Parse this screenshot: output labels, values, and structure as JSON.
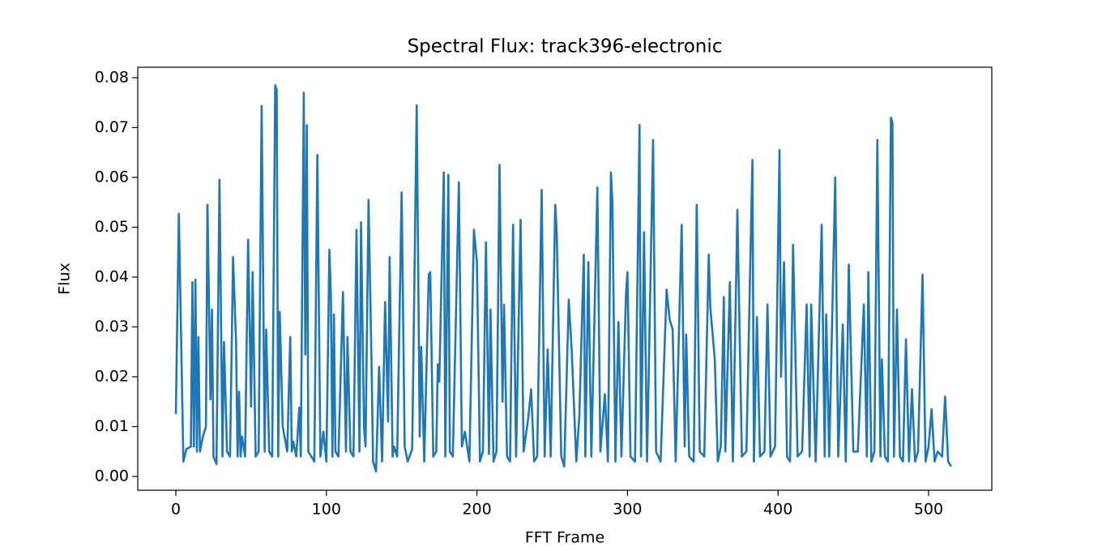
{
  "chart_data": {
    "type": "line",
    "title": "Spectral Flux: track396-electronic",
    "xlabel": "FFT Frame",
    "ylabel": "Flux",
    "color": "#1f77b4",
    "x": [
      0,
      2,
      5,
      7,
      10,
      11,
      12,
      13,
      14,
      15,
      16,
      18,
      20,
      21,
      23,
      24,
      25,
      27,
      29,
      31,
      32,
      34,
      36,
      38,
      40,
      41,
      42,
      43,
      44,
      46,
      48,
      50,
      51,
      53,
      55,
      57,
      59,
      60,
      62,
      64,
      66,
      67,
      68,
      69,
      71,
      74,
      76,
      77,
      78,
      80,
      82,
      83,
      85,
      86,
      87,
      88,
      90,
      92,
      94,
      96,
      98,
      100,
      102,
      103,
      104,
      105,
      106,
      108,
      111,
      113,
      114,
      116,
      118,
      120,
      122,
      123,
      125,
      126,
      128,
      130,
      131,
      133,
      135,
      137,
      139,
      141,
      142,
      144,
      145,
      147,
      150,
      152,
      154,
      157,
      160,
      162,
      163,
      165,
      168,
      169,
      171,
      173,
      174,
      175,
      178,
      179,
      181,
      182,
      184,
      188,
      190,
      192,
      195,
      198,
      200,
      202,
      204,
      206,
      208,
      209,
      211,
      213,
      215,
      217,
      218,
      220,
      222,
      224,
      226,
      229,
      231,
      234,
      236,
      238,
      240,
      243,
      245,
      247,
      249,
      252,
      253,
      256,
      258,
      261,
      263,
      266,
      268,
      271,
      272,
      274,
      276,
      280,
      282,
      285,
      287,
      289,
      290,
      292,
      294,
      296,
      299,
      300,
      302,
      305,
      308,
      309,
      311,
      313,
      317,
      319,
      322,
      326,
      328,
      330,
      332,
      336,
      338,
      339,
      341,
      344,
      346,
      348,
      351,
      354,
      355,
      358,
      360,
      362,
      364,
      365,
      368,
      370,
      373,
      376,
      379,
      383,
      384,
      386,
      388,
      391,
      393,
      395,
      398,
      401,
      402,
      404,
      406,
      408,
      410,
      413,
      416,
      419,
      421,
      422,
      425,
      429,
      431,
      432,
      434,
      438,
      440,
      443,
      445,
      447,
      450,
      453,
      457,
      459,
      460,
      462,
      464,
      466,
      468,
      469,
      471,
      473,
      475,
      476,
      477,
      479,
      481,
      483,
      485,
      487,
      489,
      491,
      493,
      496,
      498,
      500,
      502,
      504,
      506,
      509,
      511,
      513,
      515
    ],
    "values": [
      0.0125,
      0.0527,
      0.003,
      0.0055,
      0.006,
      0.039,
      0.006,
      0.0395,
      0.005,
      0.028,
      0.005,
      0.008,
      0.01,
      0.0545,
      0.0155,
      0.0335,
      0.004,
      0.0025,
      0.0595,
      0.004,
      0.027,
      0.005,
      0.004,
      0.044,
      0.027,
      0.004,
      0.017,
      0.004,
      0.008,
      0.004,
      0.0475,
      0.014,
      0.041,
      0.004,
      0.005,
      0.0743,
      0.005,
      0.0295,
      0.005,
      0.004,
      0.0785,
      0.0775,
      0.004,
      0.033,
      0.01,
      0.005,
      0.028,
      0.005,
      0.007,
      0.004,
      0.0138,
      0.004,
      0.077,
      0.0245,
      0.0705,
      0.005,
      0.004,
      0.003,
      0.0645,
      0.004,
      0.009,
      0.003,
      0.0455,
      0.036,
      0.004,
      0.0325,
      0.005,
      0.004,
      0.037,
      0.005,
      0.028,
      0.005,
      0.004,
      0.0495,
      0.005,
      0.051,
      0.01,
      0.006,
      0.0555,
      0.0225,
      0.003,
      0.001,
      0.022,
      0.003,
      0.035,
      0.011,
      0.044,
      0.004,
      0.006,
      0.004,
      0.057,
      0.006,
      0.003,
      0.0055,
      0.0745,
      0.008,
      0.026,
      0.003,
      0.0405,
      0.041,
      0.004,
      0.005,
      0.0225,
      0.019,
      0.061,
      0.004,
      0.0605,
      0.005,
      0.004,
      0.059,
      0.006,
      0.009,
      0.003,
      0.0495,
      0.043,
      0.003,
      0.005,
      0.047,
      0.0045,
      0.0335,
      0.003,
      0.005,
      0.0625,
      0.015,
      0.0345,
      0.004,
      0.003,
      0.0505,
      0.004,
      0.0515,
      0.005,
      0.0115,
      0.0175,
      0.003,
      0.004,
      0.0575,
      0.004,
      0.0255,
      0.004,
      0.0545,
      0.049,
      0.004,
      0.002,
      0.0355,
      0.025,
      0.003,
      0.012,
      0.0445,
      0.004,
      0.043,
      0.004,
      0.058,
      0.005,
      0.0165,
      0.003,
      0.061,
      0.055,
      0.003,
      0.031,
      0.004,
      0.0365,
      0.041,
      0.004,
      0.003,
      0.0705,
      0.004,
      0.049,
      0.003,
      0.0675,
      0.005,
      0.003,
      0.0375,
      0.0315,
      0.0295,
      0.003,
      0.0505,
      0.006,
      0.0285,
      0.004,
      0.003,
      0.0545,
      0.005,
      0.004,
      0.0445,
      0.034,
      0.0235,
      0.003,
      0.006,
      0.036,
      0.005,
      0.039,
      0.003,
      0.0535,
      0.004,
      0.005,
      0.0635,
      0.003,
      0.032,
      0.004,
      0.005,
      0.0345,
      0.004,
      0.006,
      0.0655,
      0.02,
      0.043,
      0.004,
      0.003,
      0.0465,
      0.004,
      0.005,
      0.0345,
      0.004,
      0.0345,
      0.003,
      0.0505,
      0.004,
      0.0325,
      0.004,
      0.06,
      0.004,
      0.0305,
      0.003,
      0.0425,
      0.005,
      0.005,
      0.0345,
      0.004,
      0.041,
      0.003,
      0.005,
      0.0675,
      0.004,
      0.0235,
      0.004,
      0.003,
      0.072,
      0.071,
      0.004,
      0.0335,
      0.004,
      0.003,
      0.0275,
      0.003,
      0.0175,
      0.003,
      0.005,
      0.0405,
      0.003,
      0.006,
      0.0135,
      0.003,
      0.005,
      0.004,
      0.016,
      0.003,
      0.002
    ],
    "xlim": [
      -25.3,
      542
    ],
    "ylim": [
      -0.00276,
      0.0821
    ],
    "xticks": [
      0,
      100,
      200,
      300,
      400,
      500
    ],
    "yticks": [
      {
        "value": 0,
        "label": "0.00"
      },
      0.01,
      0.02,
      0.03,
      0.04,
      0.05,
      0.06,
      0.07,
      0.08
    ]
  }
}
